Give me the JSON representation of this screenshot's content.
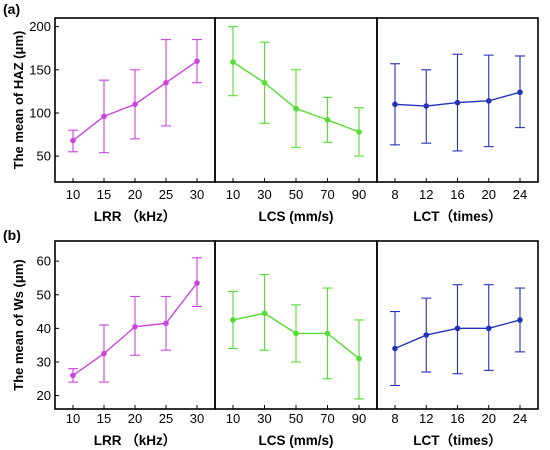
{
  "chart_data": [
    {
      "type": "line",
      "panel_label": "(a)",
      "ylabel": "The mean of HAZ (μm)",
      "ylim": [
        20,
        210
      ],
      "yticks": [
        50,
        100,
        150,
        200
      ],
      "subplots": [
        {
          "xlabel": "LRR （kHz）",
          "x": [
            10,
            15,
            20,
            25,
            30
          ],
          "series": [
            {
              "color": "#cc44dd",
              "values": [
                68,
                96,
                110,
                135,
                160
              ],
              "err_low": [
                55,
                54,
                70,
                85,
                135
              ],
              "err_high": [
                80,
                138,
                150,
                185,
                185
              ]
            }
          ]
        },
        {
          "xlabel": "LCS (mm/s)",
          "x": [
            10,
            30,
            50,
            70,
            90
          ],
          "series": [
            {
              "color": "#55dd33",
              "values": [
                159,
                135,
                105,
                92,
                78
              ],
              "err_low": [
                120,
                88,
                60,
                66,
                50
              ],
              "err_high": [
                200,
                182,
                150,
                118,
                106
              ]
            }
          ]
        },
        {
          "xlabel": "LCT（times）",
          "x": [
            8,
            12,
            16,
            20,
            24
          ],
          "series": [
            {
              "color": "#2233bb",
              "values": [
                110,
                108,
                112,
                114,
                124
              ],
              "err_low": [
                63,
                65,
                56,
                61,
                83
              ],
              "err_high": [
                157,
                150,
                168,
                167,
                166
              ]
            }
          ]
        }
      ]
    },
    {
      "type": "line",
      "panel_label": "(b)",
      "ylabel": "The mean of Ws (μm)",
      "ylim": [
        16,
        66
      ],
      "yticks": [
        20,
        30,
        40,
        50,
        60
      ],
      "subplots": [
        {
          "xlabel": "LRR （kHz）",
          "x": [
            10,
            15,
            20,
            25,
            30
          ],
          "series": [
            {
              "color": "#cc44dd",
              "values": [
                26,
                32.5,
                40.5,
                41.5,
                53.5
              ],
              "err_low": [
                24,
                24,
                32,
                33.5,
                46.5
              ],
              "err_high": [
                28,
                41,
                49.5,
                49.5,
                61
              ]
            }
          ]
        },
        {
          "xlabel": "LCS (mm/s)",
          "x": [
            10,
            30,
            50,
            70,
            90
          ],
          "series": [
            {
              "color": "#55dd33",
              "values": [
                42.5,
                44.5,
                38.5,
                38.5,
                31
              ],
              "err_low": [
                34,
                33.5,
                30,
                25,
                19
              ],
              "err_high": [
                51,
                56,
                47,
                52,
                42.5
              ]
            }
          ]
        },
        {
          "xlabel": "LCT（times）",
          "x": [
            8,
            12,
            16,
            20,
            24
          ],
          "series": [
            {
              "color": "#2233bb",
              "values": [
                34,
                38,
                40,
                40,
                42.5
              ],
              "err_low": [
                23,
                27,
                26.5,
                27.5,
                33
              ],
              "err_high": [
                45,
                49,
                53,
                53,
                52
              ]
            }
          ]
        }
      ]
    }
  ]
}
